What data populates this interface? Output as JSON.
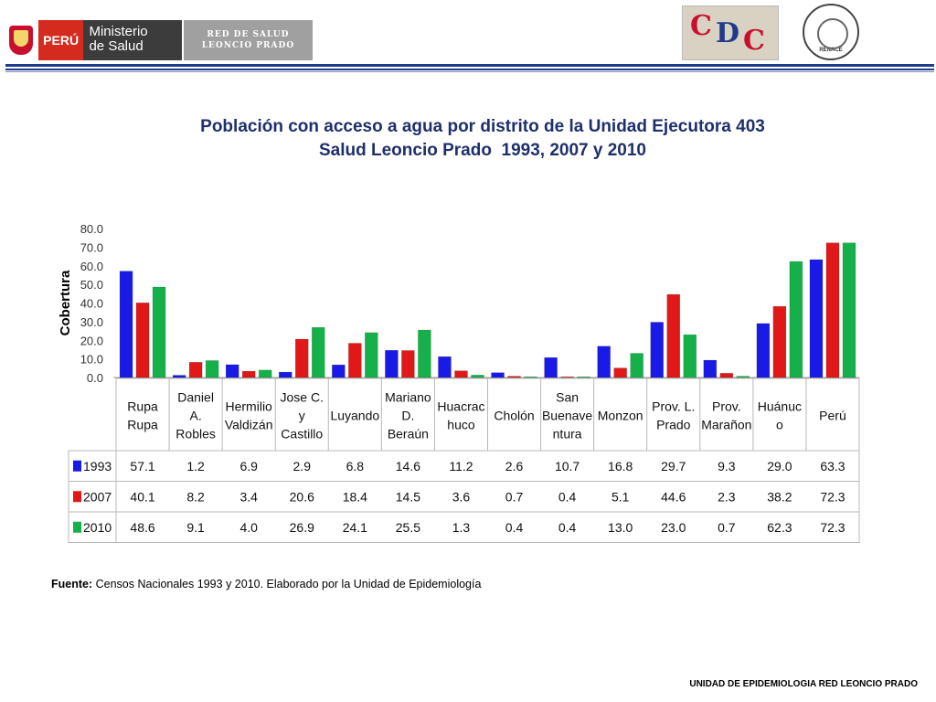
{
  "header": {
    "peru_label": "PERÚ",
    "ministerio_line1": "Ministerio",
    "ministerio_line2": "de Salud",
    "red_line1": "RED DE SALUD",
    "red_line2": "LEONCIO PRADO",
    "cdc_label": "CDC",
    "renace_label": "RED NACIONAL DE EPIDEMIOLOGIA",
    "renace_bottom": "RENACE"
  },
  "title": {
    "line1": "Población con acceso a agua por distrito de la Unidad Ejecutora 403",
    "line2": "Salud Leoncio Prado  1993, 2007 y 2010"
  },
  "chart_data": {
    "type": "bar",
    "ylabel": "Cobertura",
    "ylim": [
      0,
      80
    ],
    "yticks": [
      "80.0",
      "70.0",
      "60.0",
      "50.0",
      "40.0",
      "30.0",
      "20.0",
      "10.0",
      "0.0"
    ],
    "categories": [
      [
        "Rupa",
        "Rupa"
      ],
      [
        "Daniel",
        "A.",
        "Robles"
      ],
      [
        "Hermilio",
        "Valdizán"
      ],
      [
        "Jose C.",
        "y",
        "Castillo"
      ],
      [
        "Luyando"
      ],
      [
        "Mariano",
        "D.",
        "Beraún"
      ],
      [
        "Huacrac",
        "huco"
      ],
      [
        "Cholón"
      ],
      [
        "San",
        "Buenave",
        "ntura"
      ],
      [
        "Monzon"
      ],
      [
        "Prov. L.",
        "Prado"
      ],
      [
        "Prov.",
        "Marañon"
      ],
      [
        "Huánuc",
        "o"
      ],
      [
        "Perú"
      ]
    ],
    "series": [
      {
        "name": "1993",
        "color": "#1a1ae6",
        "values": [
          57.1,
          1.2,
          6.9,
          2.9,
          6.8,
          14.6,
          11.2,
          2.6,
          10.7,
          16.8,
          29.7,
          9.3,
          29.0,
          63.3
        ],
        "labels": [
          "57.1",
          "1.2",
          "6.9",
          "2.9",
          "6.8",
          "14.6",
          "11.2",
          "2.6",
          "10.7",
          "16.8",
          "29.7",
          "9.3",
          "29.0",
          "63.3"
        ]
      },
      {
        "name": "2007",
        "color": "#e01818",
        "values": [
          40.1,
          8.2,
          3.4,
          20.6,
          18.4,
          14.5,
          3.6,
          0.7,
          0.4,
          5.1,
          44.6,
          2.3,
          38.2,
          72.3
        ],
        "labels": [
          "40.1",
          "8.2",
          "3.4",
          "20.6",
          "18.4",
          "14.5",
          "3.6",
          "0.7",
          "0.4",
          "5.1",
          "44.6",
          "2.3",
          "38.2",
          "72.3"
        ]
      },
      {
        "name": "2010",
        "color": "#16b04a",
        "values": [
          48.6,
          9.1,
          4.0,
          26.9,
          24.1,
          25.5,
          1.3,
          0.4,
          0.4,
          13.0,
          23.0,
          0.7,
          62.3,
          72.3
        ],
        "labels": [
          "48.6",
          "9.1",
          "4.0",
          "26.9",
          "24.1",
          "25.5",
          "1.3",
          "0.4",
          "0.4",
          "13.0",
          "23.0",
          "0.7",
          "62.3",
          "72.3"
        ]
      }
    ],
    "grid": false,
    "legend": "data-table"
  },
  "source": {
    "label": "Fuente:",
    "text": " Censos Nacionales 1993 y 2010. Elaborado por la Unidad de Epidemiología"
  },
  "footer": {
    "text": "UNIDAD  DE EPIDEMIOLOGIA RED LEONCIO PRADO"
  }
}
